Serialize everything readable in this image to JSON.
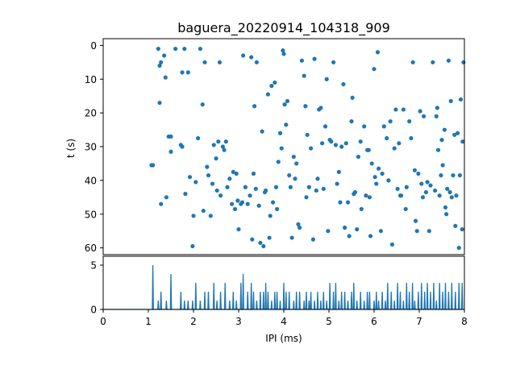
{
  "chart_data": [
    {
      "type": "scatter",
      "title": "baguera_20220914_104318_909",
      "xlabel": "",
      "ylabel": "t (s)",
      "xlim": [
        0,
        8
      ],
      "ylim": [
        62,
        -2
      ],
      "yaxis_inverted": true,
      "grid": false,
      "y_ticks": [
        0,
        10,
        20,
        30,
        40,
        50,
        60
      ],
      "marker_color": "#1f77b4",
      "points": [
        [
          1.07,
          35.5
        ],
        [
          1.1,
          35.5
        ],
        [
          1.22,
          1.0
        ],
        [
          1.25,
          6.0
        ],
        [
          1.28,
          5.0
        ],
        [
          1.25,
          17.0
        ],
        [
          1.28,
          47.0
        ],
        [
          1.35,
          3.0
        ],
        [
          1.38,
          9.5
        ],
        [
          1.4,
          45.0
        ],
        [
          1.45,
          27.0
        ],
        [
          1.5,
          27.0
        ],
        [
          1.5,
          31.5
        ],
        [
          1.6,
          1.0
        ],
        [
          1.72,
          29.5
        ],
        [
          1.75,
          30.0
        ],
        [
          1.75,
          8.0
        ],
        [
          1.8,
          1.0
        ],
        [
          1.82,
          44.0
        ],
        [
          1.88,
          8.0
        ],
        [
          1.92,
          39.0
        ],
        [
          1.98,
          59.5
        ],
        [
          2.0,
          50.5
        ],
        [
          2.05,
          40.5
        ],
        [
          2.1,
          27.5
        ],
        [
          2.15,
          1.0
        ],
        [
          2.2,
          17.5
        ],
        [
          2.22,
          49.0
        ],
        [
          2.25,
          5.0
        ],
        [
          2.3,
          36.0
        ],
        [
          2.33,
          38.5
        ],
        [
          2.38,
          50.5
        ],
        [
          2.42,
          41.0
        ],
        [
          2.45,
          29.5
        ],
        [
          2.5,
          33.5
        ],
        [
          2.52,
          43.0
        ],
        [
          2.55,
          28.5
        ],
        [
          2.58,
          5.0
        ],
        [
          2.6,
          44.5
        ],
        [
          2.65,
          30.0
        ],
        [
          2.68,
          31.0
        ],
        [
          2.72,
          28.5
        ],
        [
          2.75,
          42.0
        ],
        [
          2.8,
          39.5
        ],
        [
          2.85,
          47.0
        ],
        [
          2.88,
          37.5
        ],
        [
          2.92,
          48.5
        ],
        [
          2.95,
          38.0
        ],
        [
          2.98,
          46.0
        ],
        [
          3.0,
          54.5
        ],
        [
          3.05,
          47.0
        ],
        [
          3.08,
          46.5
        ],
        [
          3.1,
          3.0
        ],
        [
          3.15,
          42.0
        ],
        [
          3.2,
          47.0
        ],
        [
          3.25,
          44.5
        ],
        [
          3.28,
          3.5
        ],
        [
          3.3,
          57.5
        ],
        [
          3.33,
          38.0
        ],
        [
          3.35,
          18.0
        ],
        [
          3.38,
          42.5
        ],
        [
          3.4,
          5.0
        ],
        [
          3.45,
          47.5
        ],
        [
          3.48,
          58.5
        ],
        [
          3.52,
          25.5
        ],
        [
          3.55,
          59.5
        ],
        [
          3.58,
          43.5
        ],
        [
          3.6,
          43.0
        ],
        [
          3.65,
          14.5
        ],
        [
          3.68,
          57.0
        ],
        [
          3.7,
          50.5
        ],
        [
          3.73,
          12.0
        ],
        [
          3.76,
          46.5
        ],
        [
          3.8,
          11.0
        ],
        [
          3.83,
          42.0
        ],
        [
          3.85,
          48.5
        ],
        [
          3.88,
          34.5
        ],
        [
          3.92,
          26.0
        ],
        [
          3.95,
          30.5
        ],
        [
          3.98,
          1.5
        ],
        [
          4.0,
          2.5
        ],
        [
          4.02,
          17.5
        ],
        [
          4.05,
          23.5
        ],
        [
          4.08,
          16.5
        ],
        [
          4.12,
          38.5
        ],
        [
          4.15,
          42.0
        ],
        [
          4.18,
          57.0
        ],
        [
          4.22,
          33.0
        ],
        [
          4.25,
          39.5
        ],
        [
          4.28,
          35.0
        ],
        [
          4.32,
          53.0
        ],
        [
          4.35,
          54.0
        ],
        [
          4.4,
          4.5
        ],
        [
          4.45,
          9.0
        ],
        [
          4.48,
          18.0
        ],
        [
          4.5,
          45.0
        ],
        [
          4.52,
          26.5
        ],
        [
          4.56,
          42.0
        ],
        [
          4.6,
          30.5
        ],
        [
          4.65,
          57.5
        ],
        [
          4.68,
          4.0
        ],
        [
          4.72,
          43.0
        ],
        [
          4.75,
          39.5
        ],
        [
          4.78,
          19.0
        ],
        [
          4.82,
          18.5
        ],
        [
          4.85,
          29.0
        ],
        [
          4.88,
          42.5
        ],
        [
          4.92,
          24.0
        ],
        [
          4.95,
          10.0
        ],
        [
          4.98,
          55.0
        ],
        [
          5.02,
          28.0
        ],
        [
          5.05,
          28.5
        ],
        [
          5.1,
          5.0
        ],
        [
          5.15,
          29.5
        ],
        [
          5.18,
          41.0
        ],
        [
          5.22,
          37.5
        ],
        [
          5.25,
          46.5
        ],
        [
          5.28,
          30.0
        ],
        [
          5.32,
          11.5
        ],
        [
          5.35,
          54.0
        ],
        [
          5.38,
          29.0
        ],
        [
          5.42,
          46.5
        ],
        [
          5.45,
          56.5
        ],
        [
          5.5,
          22.5
        ],
        [
          5.52,
          15.5
        ],
        [
          5.55,
          44.0
        ],
        [
          5.58,
          43.5
        ],
        [
          5.62,
          54.5
        ],
        [
          5.65,
          33.0
        ],
        [
          5.7,
          28.5
        ],
        [
          5.72,
          48.5
        ],
        [
          5.78,
          24.0
        ],
        [
          5.82,
          44.5
        ],
        [
          5.85,
          31.0
        ],
        [
          5.88,
          31.0
        ],
        [
          5.9,
          45.0
        ],
        [
          5.92,
          56.5
        ],
        [
          5.95,
          35.0
        ],
        [
          6.0,
          7.0
        ],
        [
          6.02,
          39.0
        ],
        [
          6.05,
          41.0
        ],
        [
          6.08,
          2.0
        ],
        [
          6.1,
          36.5
        ],
        [
          6.15,
          55.0
        ],
        [
          6.18,
          38.0
        ],
        [
          6.22,
          24.0
        ],
        [
          6.28,
          27.5
        ],
        [
          6.32,
          40.0
        ],
        [
          6.36,
          22.5
        ],
        [
          6.4,
          59.0
        ],
        [
          6.45,
          30.5
        ],
        [
          6.48,
          19.0
        ],
        [
          6.52,
          42.5
        ],
        [
          6.55,
          29.0
        ],
        [
          6.58,
          44.5
        ],
        [
          6.6,
          44.5
        ],
        [
          6.65,
          19.0
        ],
        [
          6.7,
          48.5
        ],
        [
          6.72,
          42.0
        ],
        [
          6.78,
          22.5
        ],
        [
          6.82,
          27.5
        ],
        [
          6.86,
          5.0
        ],
        [
          6.9,
          37.0
        ],
        [
          6.92,
          52.0
        ],
        [
          6.95,
          55.0
        ],
        [
          6.98,
          38.0
        ],
        [
          7.02,
          19.5
        ],
        [
          7.05,
          41.0
        ],
        [
          7.08,
          45.0
        ],
        [
          7.1,
          21.0
        ],
        [
          7.15,
          43.5
        ],
        [
          7.18,
          40.5
        ],
        [
          7.22,
          55.0
        ],
        [
          7.25,
          41.5
        ],
        [
          7.3,
          5.0
        ],
        [
          7.35,
          43.0
        ],
        [
          7.38,
          21.0
        ],
        [
          7.4,
          18.5
        ],
        [
          7.42,
          31.0
        ],
        [
          7.45,
          44.5
        ],
        [
          7.48,
          38.5
        ],
        [
          7.5,
          28.0
        ],
        [
          7.52,
          35.5
        ],
        [
          7.56,
          25.0
        ],
        [
          7.58,
          48.0
        ],
        [
          7.6,
          50.0
        ],
        [
          7.62,
          42.5
        ],
        [
          7.65,
          4.5
        ],
        [
          7.68,
          43.5
        ],
        [
          7.7,
          16.5
        ],
        [
          7.72,
          45.0
        ],
        [
          7.75,
          38.5
        ],
        [
          7.78,
          26.5
        ],
        [
          7.8,
          53.5
        ],
        [
          7.82,
          44.5
        ],
        [
          7.85,
          26.0
        ],
        [
          7.88,
          60.0
        ],
        [
          7.9,
          38.5
        ],
        [
          7.92,
          16.0
        ],
        [
          7.95,
          54.5
        ],
        [
          7.96,
          28.5
        ],
        [
          7.98,
          5.0
        ]
      ]
    },
    {
      "type": "line",
      "title": "",
      "xlabel": "IPI (ms)",
      "ylabel": "",
      "xlim": [
        0,
        8
      ],
      "ylim": [
        0,
        6
      ],
      "grid": false,
      "x_ticks": [
        0,
        1,
        2,
        3,
        4,
        5,
        6,
        7,
        8
      ],
      "y_ticks": [
        0,
        5
      ],
      "line_color": "#1f77b4",
      "histogram": {
        "bin_width": 0.025,
        "peaks": [
          [
            1.1,
            5
          ],
          [
            1.22,
            1
          ],
          [
            1.28,
            2
          ],
          [
            1.4,
            1
          ],
          [
            1.5,
            4
          ],
          [
            1.72,
            2
          ],
          [
            1.8,
            1
          ],
          [
            1.88,
            1
          ],
          [
            1.98,
            1
          ],
          [
            2.05,
            3
          ],
          [
            2.15,
            1
          ],
          [
            2.25,
            2
          ],
          [
            2.33,
            2
          ],
          [
            2.45,
            3
          ],
          [
            2.52,
            1
          ],
          [
            2.6,
            2
          ],
          [
            2.7,
            3
          ],
          [
            2.8,
            1
          ],
          [
            2.88,
            2
          ],
          [
            2.95,
            1
          ],
          [
            3.05,
            3
          ],
          [
            3.1,
            4
          ],
          [
            3.2,
            2
          ],
          [
            3.28,
            3
          ],
          [
            3.33,
            2
          ],
          [
            3.4,
            1
          ],
          [
            3.48,
            2
          ],
          [
            3.55,
            2
          ],
          [
            3.6,
            3
          ],
          [
            3.65,
            2
          ],
          [
            3.73,
            1
          ],
          [
            3.8,
            2
          ],
          [
            3.85,
            2
          ],
          [
            3.92,
            1
          ],
          [
            4.0,
            3
          ],
          [
            4.05,
            2
          ],
          [
            4.12,
            2
          ],
          [
            4.22,
            1
          ],
          [
            4.28,
            2
          ],
          [
            4.35,
            2
          ],
          [
            4.45,
            1
          ],
          [
            4.5,
            2
          ],
          [
            4.56,
            1
          ],
          [
            4.6,
            2
          ],
          [
            4.68,
            1
          ],
          [
            4.75,
            2
          ],
          [
            4.82,
            1
          ],
          [
            4.88,
            2
          ],
          [
            4.95,
            1
          ],
          [
            5.02,
            3
          ],
          [
            5.1,
            2
          ],
          [
            5.15,
            3
          ],
          [
            5.22,
            1
          ],
          [
            5.28,
            2
          ],
          [
            5.35,
            2
          ],
          [
            5.42,
            1
          ],
          [
            5.5,
            2
          ],
          [
            5.55,
            3
          ],
          [
            5.62,
            1
          ],
          [
            5.7,
            2
          ],
          [
            5.78,
            1
          ],
          [
            5.85,
            2
          ],
          [
            5.9,
            2
          ],
          [
            6.0,
            1
          ],
          [
            6.05,
            2
          ],
          [
            6.1,
            1
          ],
          [
            6.18,
            2
          ],
          [
            6.25,
            1
          ],
          [
            6.3,
            3
          ],
          [
            6.38,
            2
          ],
          [
            6.45,
            1
          ],
          [
            6.52,
            3
          ],
          [
            6.58,
            2
          ],
          [
            6.65,
            1
          ],
          [
            6.72,
            3
          ],
          [
            6.78,
            2
          ],
          [
            6.85,
            3
          ],
          [
            6.9,
            1
          ],
          [
            6.98,
            2
          ],
          [
            7.05,
            3
          ],
          [
            7.12,
            2
          ],
          [
            7.18,
            3
          ],
          [
            7.25,
            2
          ],
          [
            7.32,
            3
          ],
          [
            7.38,
            1
          ],
          [
            7.45,
            3
          ],
          [
            7.52,
            2
          ],
          [
            7.58,
            3
          ],
          [
            7.65,
            2
          ],
          [
            7.72,
            3
          ],
          [
            7.8,
            2
          ],
          [
            7.88,
            3
          ],
          [
            7.95,
            3
          ]
        ]
      }
    }
  ]
}
